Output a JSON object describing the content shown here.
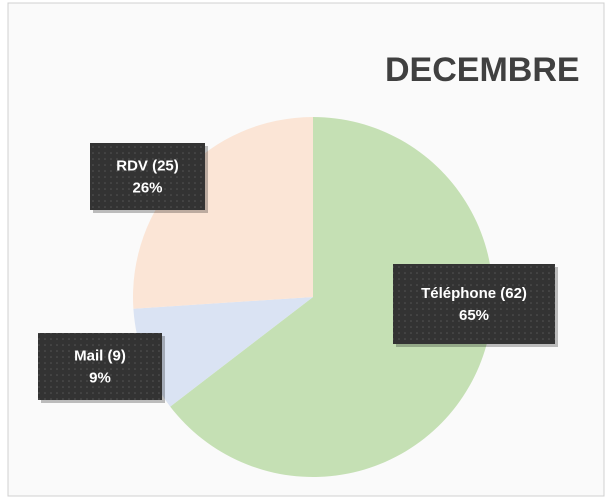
{
  "chart_data": {
    "type": "pie",
    "title": "DECEMBRE",
    "categories": [
      "Téléphone",
      "Mail",
      "RDV"
    ],
    "values": [
      62,
      9,
      25
    ],
    "value_labels": [
      "(62)",
      "(9)",
      "(25)"
    ],
    "percent_labels": [
      "65%",
      "9%",
      "26%"
    ],
    "colors": [
      "#c5e0b4",
      "#dae3f3",
      "#fbe5d6"
    ]
  }
}
